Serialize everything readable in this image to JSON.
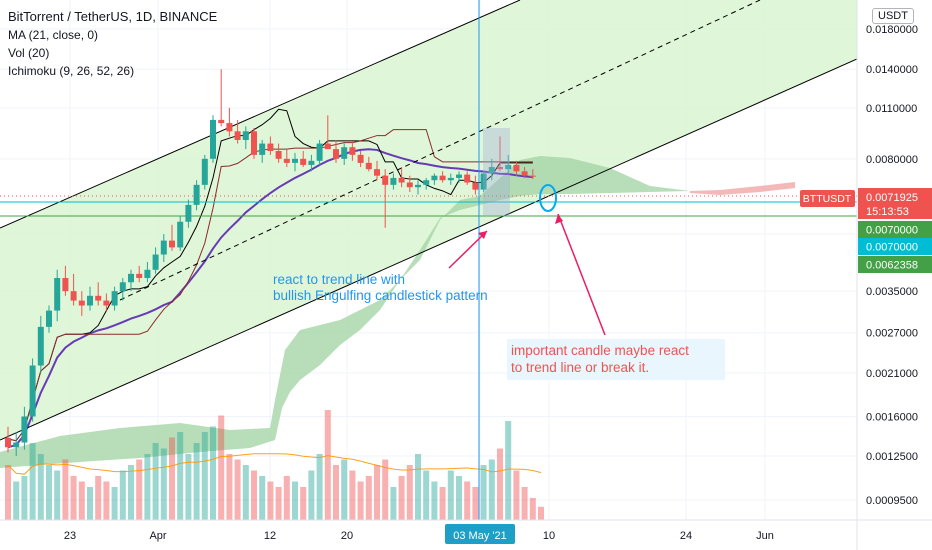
{
  "header": {
    "title": "BitTorrent / TetherUS, 1D, BINANCE",
    "indicators": [
      "MA (21, close, 0)",
      "Vol (20)",
      "Ichimoku (9, 26, 52, 26)"
    ],
    "currency": "USDT"
  },
  "chart_data": {
    "type": "candlestick",
    "symbol": "BTTUSDT",
    "interval": "1D",
    "exchange": "BINANCE",
    "y_scale": "log",
    "y_ticks": [
      "0.0180000",
      "0.0140000",
      "0.0110000",
      "0.0080000",
      "0.0050000",
      "0.0035000",
      "0.0027000",
      "0.0021000",
      "0.0016000",
      "0.0012500",
      "0.0009500"
    ],
    "x_ticks": [
      "23",
      "Apr",
      "12",
      "20",
      "03 May '21",
      "10",
      "24",
      "Jun"
    ],
    "price_labels": [
      {
        "text": "BTTUSDT",
        "color": "#ef5350"
      },
      {
        "text": "0.0071925",
        "color": "#ef5350"
      },
      {
        "text": "15:13:53",
        "color": "#ef5350"
      },
      {
        "text": "0.0070000",
        "color": "#43a047"
      },
      {
        "text": "0.0070000",
        "color": "#00bcd4"
      },
      {
        "text": "0.0062358",
        "color": "#43a047"
      }
    ],
    "annotations": [
      {
        "text": "react to trend line with\nbullish Engulfing candlestick pattern",
        "color": "#2196f3"
      },
      {
        "text": "important candle maybe react\n to trend line or break it.",
        "color": "#ef5350"
      }
    ],
    "candles": [
      {
        "o": 0.0014,
        "h": 0.0015,
        "l": 0.00128,
        "c": 0.00132
      },
      {
        "o": 0.00132,
        "h": 0.00145,
        "l": 0.00125,
        "c": 0.00136
      },
      {
        "o": 0.00136,
        "h": 0.0017,
        "l": 0.0013,
        "c": 0.0016
      },
      {
        "o": 0.0016,
        "h": 0.0023,
        "l": 0.00155,
        "c": 0.0022
      },
      {
        "o": 0.0022,
        "h": 0.003,
        "l": 0.0021,
        "c": 0.0028
      },
      {
        "o": 0.0028,
        "h": 0.0032,
        "l": 0.0027,
        "c": 0.0031
      },
      {
        "o": 0.0031,
        "h": 0.004,
        "l": 0.0029,
        "c": 0.0038
      },
      {
        "o": 0.0038,
        "h": 0.0041,
        "l": 0.0034,
        "c": 0.0035
      },
      {
        "o": 0.0035,
        "h": 0.0039,
        "l": 0.0032,
        "c": 0.0033
      },
      {
        "o": 0.0033,
        "h": 0.0035,
        "l": 0.003,
        "c": 0.0032
      },
      {
        "o": 0.0032,
        "h": 0.0036,
        "l": 0.0031,
        "c": 0.0034
      },
      {
        "o": 0.0034,
        "h": 0.0037,
        "l": 0.0032,
        "c": 0.0033
      },
      {
        "o": 0.0033,
        "h": 0.00345,
        "l": 0.0031,
        "c": 0.0032
      },
      {
        "o": 0.0032,
        "h": 0.0036,
        "l": 0.0031,
        "c": 0.0035
      },
      {
        "o": 0.0035,
        "h": 0.0038,
        "l": 0.0033,
        "c": 0.0037
      },
      {
        "o": 0.0037,
        "h": 0.004,
        "l": 0.0035,
        "c": 0.0039
      },
      {
        "o": 0.0039,
        "h": 0.0041,
        "l": 0.0037,
        "c": 0.0038
      },
      {
        "o": 0.0038,
        "h": 0.0042,
        "l": 0.0037,
        "c": 0.004
      },
      {
        "o": 0.004,
        "h": 0.0046,
        "l": 0.0039,
        "c": 0.0044
      },
      {
        "o": 0.0044,
        "h": 0.005,
        "l": 0.0042,
        "c": 0.0048
      },
      {
        "o": 0.0048,
        "h": 0.0053,
        "l": 0.0045,
        "c": 0.0046
      },
      {
        "o": 0.0046,
        "h": 0.0056,
        "l": 0.0045,
        "c": 0.0054
      },
      {
        "o": 0.0054,
        "h": 0.0062,
        "l": 0.0052,
        "c": 0.006
      },
      {
        "o": 0.006,
        "h": 0.007,
        "l": 0.0058,
        "c": 0.0068
      },
      {
        "o": 0.0068,
        "h": 0.0082,
        "l": 0.0066,
        "c": 0.008
      },
      {
        "o": 0.008,
        "h": 0.0105,
        "l": 0.0078,
        "c": 0.0102
      },
      {
        "o": 0.0102,
        "h": 0.014,
        "l": 0.0098,
        "c": 0.01
      },
      {
        "o": 0.01,
        "h": 0.011,
        "l": 0.0092,
        "c": 0.0095
      },
      {
        "o": 0.0095,
        "h": 0.0102,
        "l": 0.0088,
        "c": 0.009
      },
      {
        "o": 0.009,
        "h": 0.0098,
        "l": 0.0085,
        "c": 0.0095
      },
      {
        "o": 0.0095,
        "h": 0.0097,
        "l": 0.008,
        "c": 0.0082
      },
      {
        "o": 0.0082,
        "h": 0.009,
        "l": 0.0078,
        "c": 0.0088
      },
      {
        "o": 0.0088,
        "h": 0.0092,
        "l": 0.0082,
        "c": 0.0084
      },
      {
        "o": 0.0084,
        "h": 0.0088,
        "l": 0.0078,
        "c": 0.008
      },
      {
        "o": 0.008,
        "h": 0.0085,
        "l": 0.0076,
        "c": 0.0078
      },
      {
        "o": 0.0078,
        "h": 0.0083,
        "l": 0.0074,
        "c": 0.008
      },
      {
        "o": 0.008,
        "h": 0.0084,
        "l": 0.0076,
        "c": 0.0077
      },
      {
        "o": 0.0077,
        "h": 0.0082,
        "l": 0.0074,
        "c": 0.0079
      },
      {
        "o": 0.0079,
        "h": 0.009,
        "l": 0.0077,
        "c": 0.0088
      },
      {
        "o": 0.0088,
        "h": 0.0105,
        "l": 0.0086,
        "c": 0.0085
      },
      {
        "o": 0.0085,
        "h": 0.009,
        "l": 0.0078,
        "c": 0.008
      },
      {
        "o": 0.008,
        "h": 0.0088,
        "l": 0.0077,
        "c": 0.0086
      },
      {
        "o": 0.0086,
        "h": 0.0089,
        "l": 0.0079,
        "c": 0.0082
      },
      {
        "o": 0.0082,
        "h": 0.0084,
        "l": 0.0076,
        "c": 0.0078
      },
      {
        "o": 0.0078,
        "h": 0.0081,
        "l": 0.0074,
        "c": 0.0075
      },
      {
        "o": 0.0075,
        "h": 0.0079,
        "l": 0.007,
        "c": 0.0072
      },
      {
        "o": 0.0072,
        "h": 0.0075,
        "l": 0.0052,
        "c": 0.0068
      },
      {
        "o": 0.0068,
        "h": 0.0073,
        "l": 0.0066,
        "c": 0.0071
      },
      {
        "o": 0.0071,
        "h": 0.0076,
        "l": 0.0067,
        "c": 0.0069
      },
      {
        "o": 0.0069,
        "h": 0.0072,
        "l": 0.0065,
        "c": 0.0067
      },
      {
        "o": 0.0067,
        "h": 0.007,
        "l": 0.0064,
        "c": 0.0068
      },
      {
        "o": 0.0068,
        "h": 0.0071,
        "l": 0.0066,
        "c": 0.007
      },
      {
        "o": 0.007,
        "h": 0.0073,
        "l": 0.0068,
        "c": 0.0072
      },
      {
        "o": 0.0072,
        "h": 0.0074,
        "l": 0.0069,
        "c": 0.007
      },
      {
        "o": 0.007,
        "h": 0.0073,
        "l": 0.0068,
        "c": 0.0071
      },
      {
        "o": 0.0071,
        "h": 0.0074,
        "l": 0.0069,
        "c": 0.00725
      },
      {
        "o": 0.00725,
        "h": 0.0074,
        "l": 0.0068,
        "c": 0.0069
      },
      {
        "o": 0.0069,
        "h": 0.0072,
        "l": 0.0064,
        "c": 0.0066
      },
      {
        "o": 0.0066,
        "h": 0.0074,
        "l": 0.0065,
        "c": 0.0073
      },
      {
        "o": 0.0073,
        "h": 0.008,
        "l": 0.007,
        "c": 0.0076
      },
      {
        "o": 0.0076,
        "h": 0.0092,
        "l": 0.0074,
        "c": 0.0075
      },
      {
        "o": 0.0075,
        "h": 0.0082,
        "l": 0.0073,
        "c": 0.0077
      },
      {
        "o": 0.0077,
        "h": 0.0079,
        "l": 0.0072,
        "c": 0.0074
      },
      {
        "o": 0.0074,
        "h": 0.0076,
        "l": 0.0071,
        "c": 0.0072
      },
      {
        "o": 0.0072,
        "h": 0.0075,
        "l": 0.00705,
        "c": 0.0071925
      }
    ],
    "volume_values": [
      0.5,
      0.35,
      0.4,
      0.7,
      0.6,
      0.5,
      0.45,
      0.55,
      0.4,
      0.35,
      0.3,
      0.4,
      0.35,
      0.3,
      0.45,
      0.5,
      0.55,
      0.6,
      0.7,
      0.65,
      0.75,
      0.8,
      0.6,
      0.7,
      0.8,
      0.85,
      0.95,
      0.6,
      0.55,
      0.5,
      0.45,
      0.4,
      0.35,
      0.3,
      0.4,
      0.35,
      0.3,
      0.45,
      0.6,
      1.0,
      0.5,
      0.55,
      0.45,
      0.35,
      0.4,
      0.5,
      0.55,
      0.3,
      0.4,
      0.5,
      0.6,
      0.45,
      0.35,
      0.3,
      0.45,
      0.4,
      0.35,
      0.3,
      0.5,
      0.55,
      0.65,
      0.9,
      0.45,
      0.3,
      0.2,
      0.12
    ]
  }
}
